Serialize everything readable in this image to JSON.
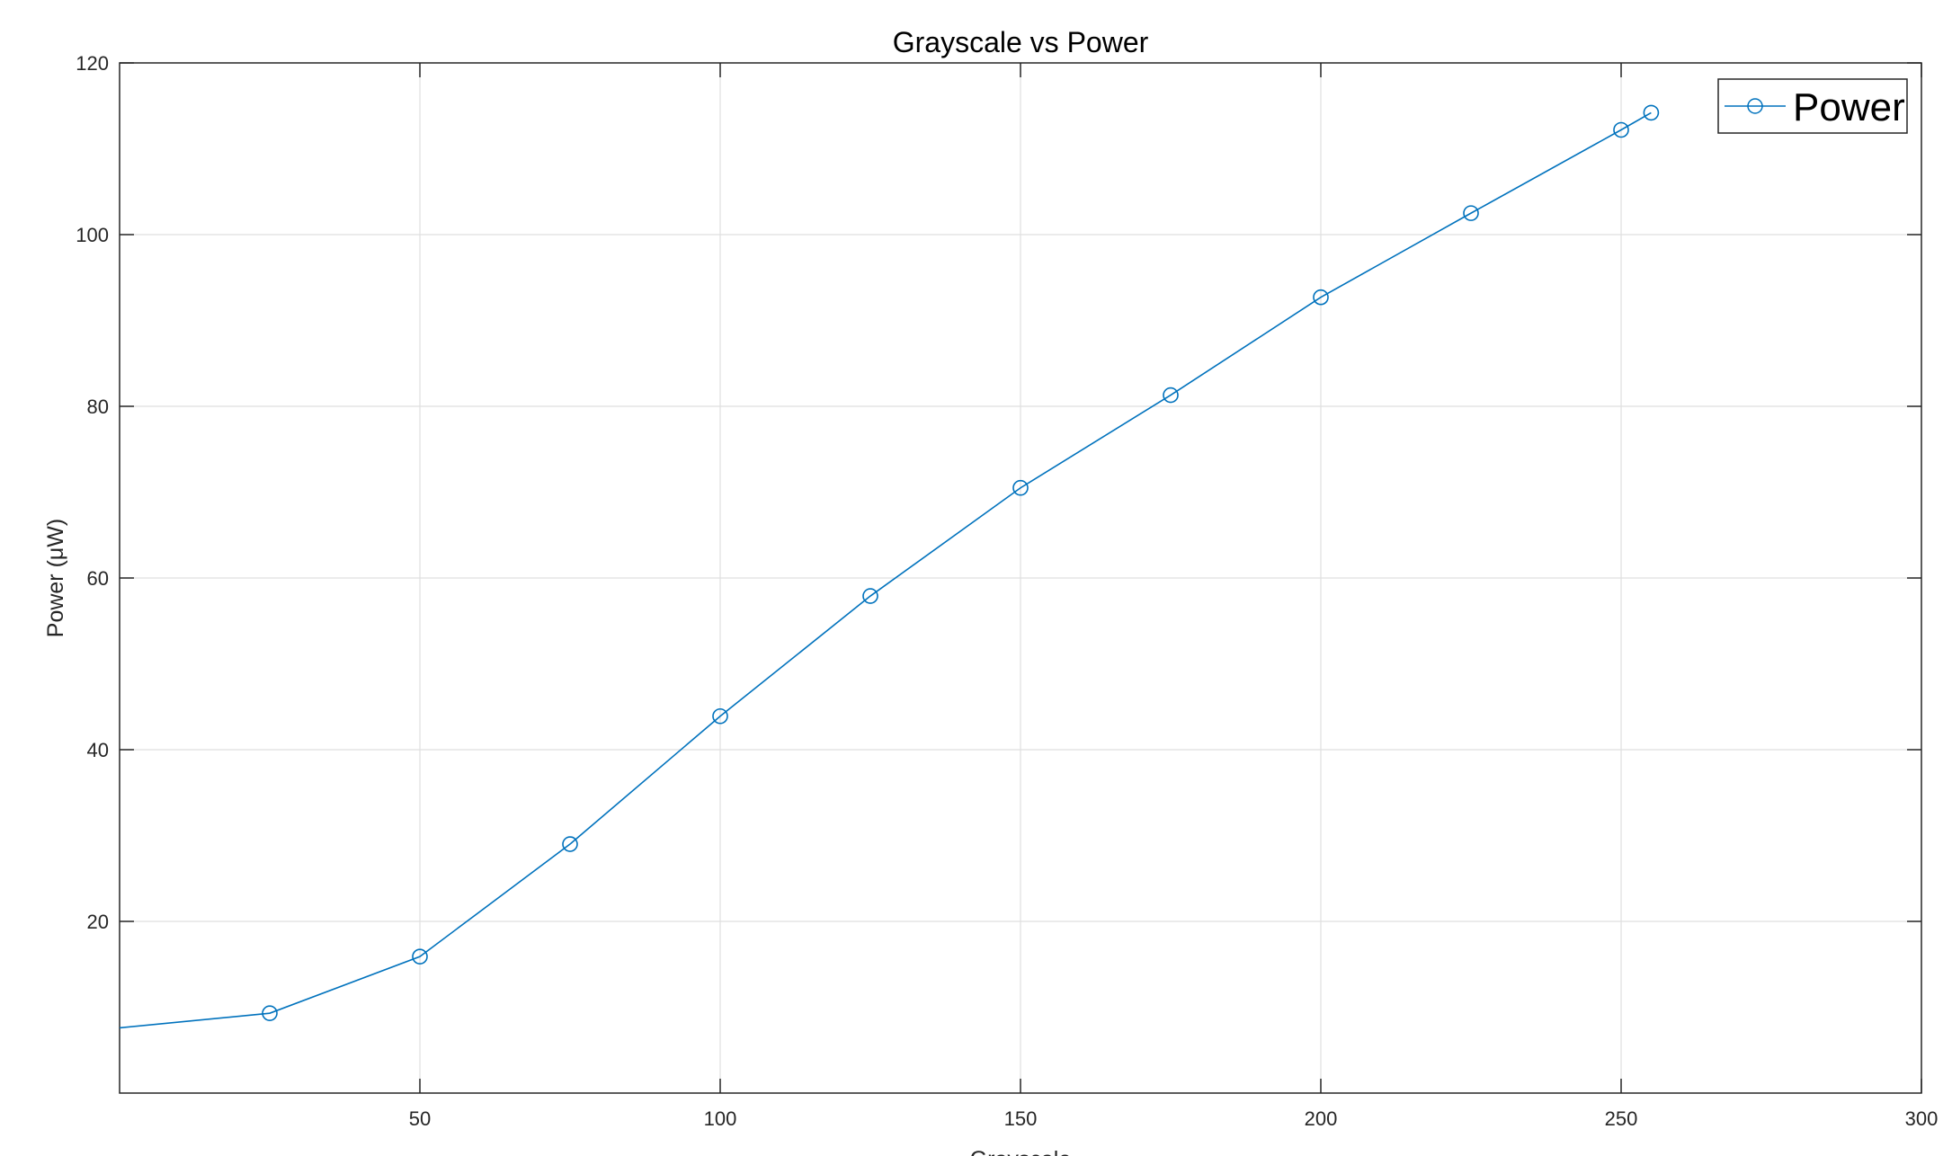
{
  "chart_data": {
    "type": "line",
    "title": "Grayscale vs Power",
    "xlabel": "Grayscale",
    "ylabel": "Power (μW)",
    "xlim": [
      0,
      300
    ],
    "ylim": [
      0,
      120
    ],
    "xticks": [
      50,
      100,
      150,
      200,
      250,
      300
    ],
    "yticks": [
      20,
      40,
      60,
      80,
      100,
      120
    ],
    "grid": true,
    "legend_position": "top-right",
    "series": [
      {
        "name": "Power",
        "color": "#0072BD",
        "marker": "circle",
        "x": [
          0,
          25,
          50,
          75,
          100,
          125,
          150,
          175,
          200,
          225,
          250,
          255
        ],
        "y": [
          7.6,
          9.3,
          15.9,
          29.0,
          43.9,
          57.9,
          70.5,
          81.3,
          92.7,
          102.5,
          112.2,
          114.2
        ]
      }
    ]
  }
}
